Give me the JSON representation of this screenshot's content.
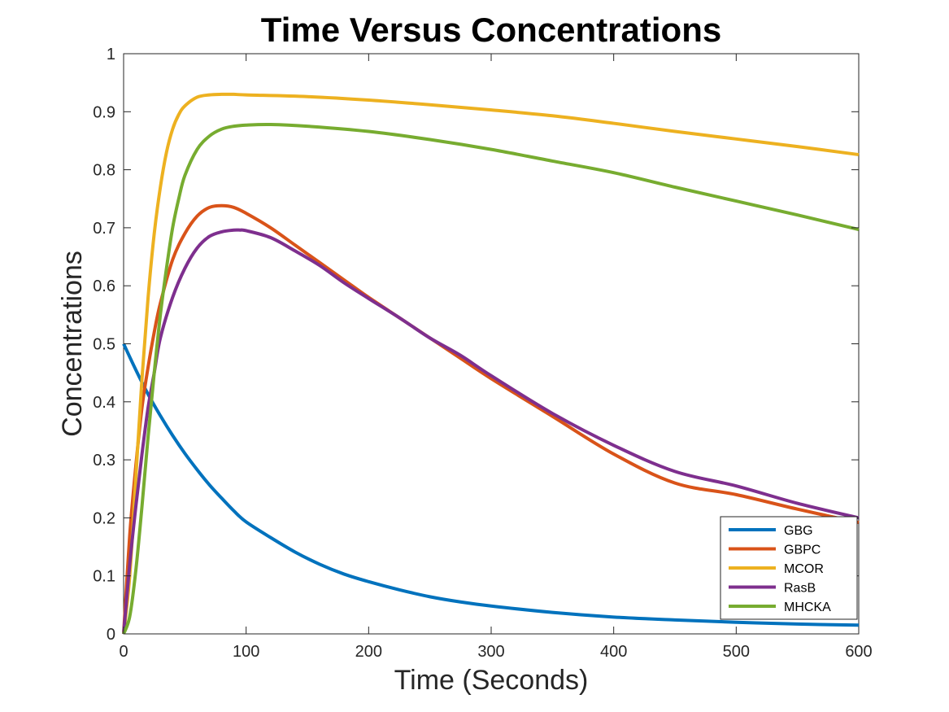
{
  "chart_data": {
    "type": "line",
    "title": "Time Versus Concentrations",
    "xlabel": "Time (Seconds)",
    "ylabel": "Concentrations",
    "xlim": [
      0,
      600
    ],
    "ylim": [
      0,
      1
    ],
    "xticks": [
      0,
      100,
      200,
      300,
      400,
      500,
      600
    ],
    "yticks": [
      0,
      0.1,
      0.2,
      0.3,
      0.4,
      0.5,
      0.6,
      0.7,
      0.8,
      0.9,
      1
    ],
    "xtick_labels": [
      "0",
      "100",
      "200",
      "300",
      "400",
      "500",
      "600"
    ],
    "ytick_labels": [
      "0",
      "0.1",
      "0.2",
      "0.3",
      "0.4",
      "0.5",
      "0.6",
      "0.7",
      "0.8",
      "0.9",
      "1"
    ],
    "grid": false,
    "legend_position": "bottom-right",
    "series": [
      {
        "name": "GBG",
        "color": "#0072BD",
        "x": [
          0,
          10,
          20,
          30,
          40,
          50,
          60,
          70,
          80,
          90,
          100,
          120,
          140,
          160,
          180,
          200,
          225,
          250,
          275,
          300,
          350,
          400,
          450,
          500,
          550,
          600
        ],
        "y": [
          0.5,
          0.455,
          0.413,
          0.376,
          0.342,
          0.311,
          0.283,
          0.257,
          0.234,
          0.212,
          0.193,
          0.166,
          0.141,
          0.12,
          0.103,
          0.09,
          0.076,
          0.064,
          0.055,
          0.048,
          0.037,
          0.029,
          0.024,
          0.02,
          0.017,
          0.015
        ]
      },
      {
        "name": "GBPC",
        "color": "#D95319",
        "x": [
          0,
          5,
          10,
          15,
          20,
          25,
          30,
          40,
          50,
          60,
          70,
          80,
          90,
          100,
          120,
          140,
          160,
          180,
          200,
          225,
          250,
          275,
          300,
          350,
          400,
          450,
          500,
          550,
          600
        ],
        "y": [
          0,
          0.17,
          0.29,
          0.39,
          0.46,
          0.52,
          0.57,
          0.645,
          0.69,
          0.72,
          0.735,
          0.738,
          0.735,
          0.725,
          0.7,
          0.67,
          0.64,
          0.61,
          0.58,
          0.545,
          0.51,
          0.475,
          0.44,
          0.375,
          0.31,
          0.26,
          0.24,
          0.215,
          0.192
        ]
      },
      {
        "name": "MCOR",
        "color": "#EDB120",
        "x": [
          0,
          5,
          10,
          15,
          20,
          25,
          30,
          35,
          40,
          45,
          50,
          60,
          70,
          80,
          90,
          100,
          150,
          200,
          250,
          300,
          350,
          400,
          450,
          500,
          550,
          600
        ],
        "y": [
          0,
          0.1,
          0.27,
          0.44,
          0.58,
          0.69,
          0.77,
          0.83,
          0.87,
          0.895,
          0.91,
          0.925,
          0.929,
          0.93,
          0.93,
          0.929,
          0.926,
          0.92,
          0.912,
          0.903,
          0.893,
          0.88,
          0.866,
          0.853,
          0.84,
          0.826
        ]
      },
      {
        "name": "RasB",
        "color": "#7E2F8E",
        "x": [
          0,
          5,
          10,
          15,
          20,
          25,
          30,
          40,
          50,
          60,
          70,
          80,
          90,
          95,
          100,
          120,
          140,
          160,
          180,
          200,
          225,
          250,
          275,
          300,
          350,
          400,
          450,
          500,
          550,
          600
        ],
        "y": [
          0,
          0.12,
          0.22,
          0.31,
          0.39,
          0.45,
          0.51,
          0.58,
          0.63,
          0.665,
          0.685,
          0.693,
          0.696,
          0.696,
          0.695,
          0.683,
          0.66,
          0.635,
          0.605,
          0.578,
          0.545,
          0.51,
          0.48,
          0.445,
          0.38,
          0.325,
          0.28,
          0.255,
          0.225,
          0.2
        ]
      },
      {
        "name": "MHCKA",
        "color": "#77AC30",
        "x": [
          0,
          5,
          10,
          15,
          20,
          25,
          30,
          35,
          40,
          45,
          50,
          60,
          70,
          80,
          90,
          100,
          120,
          150,
          200,
          250,
          300,
          350,
          400,
          450,
          500,
          550,
          600
        ],
        "y": [
          0,
          0.03,
          0.11,
          0.22,
          0.34,
          0.45,
          0.55,
          0.63,
          0.7,
          0.75,
          0.79,
          0.835,
          0.858,
          0.87,
          0.875,
          0.877,
          0.878,
          0.875,
          0.866,
          0.852,
          0.835,
          0.815,
          0.795,
          0.77,
          0.746,
          0.722,
          0.697
        ]
      }
    ]
  }
}
